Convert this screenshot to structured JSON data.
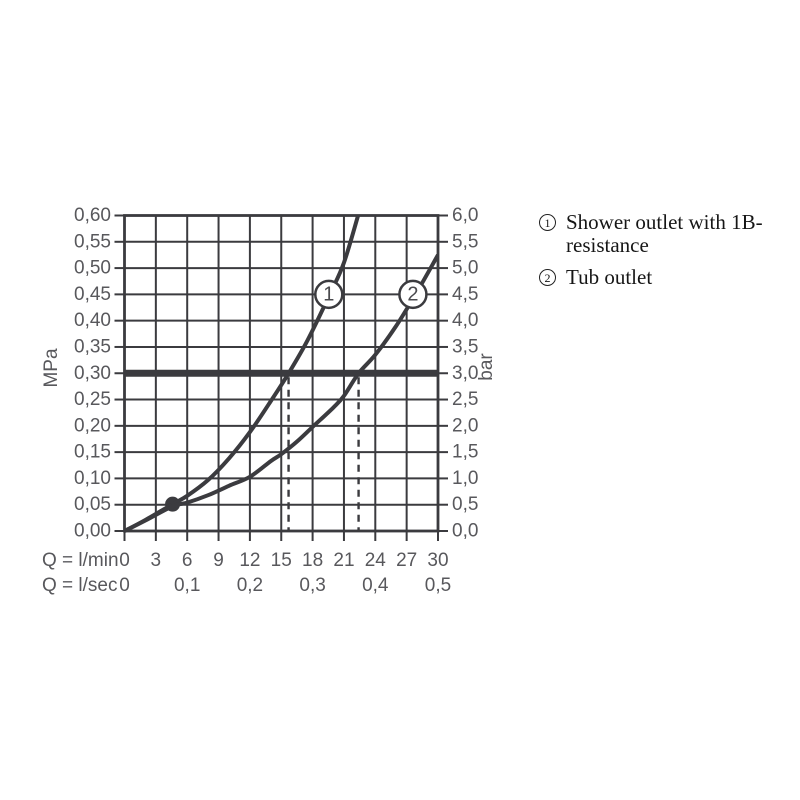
{
  "chart_data": {
    "type": "line",
    "x_axis": {
      "label_lmin": "Q = l/min",
      "label_lsec": "Q = l/sec",
      "range_lmin": [
        0,
        30
      ],
      "tick_values_lmin": [
        0,
        3,
        6,
        9,
        12,
        15,
        18,
        21,
        24,
        27,
        30
      ],
      "tick_labels_lmin": [
        "0",
        "3",
        "6",
        "9",
        "12",
        "15",
        "18",
        "21",
        "24",
        "27",
        "30"
      ],
      "lsec_positions_lmin": [
        0,
        6,
        12,
        18,
        24,
        30
      ],
      "tick_labels_lsec": [
        "0",
        "0,1",
        "0,2",
        "0,3",
        "0,4",
        "0,5"
      ]
    },
    "y_axis_left": {
      "label": "MPa",
      "range": [
        0,
        0.6
      ],
      "tick_labels_top_to_bottom": [
        "0,60",
        "0,55",
        "0,50",
        "0,45",
        "0,40",
        "0,35",
        "0,30",
        "0,25",
        "0,20",
        "0,15",
        "0,10",
        "0,05",
        "0,00"
      ]
    },
    "y_axis_right": {
      "label": "bar",
      "range": [
        0,
        6
      ],
      "tick_labels_top_to_bottom": [
        "6,0",
        "5,5",
        "5,0",
        "4,5",
        "4,0",
        "3,5",
        "3,0",
        "2,5",
        "2,0",
        "1,5",
        "1,0",
        "0,5",
        "0,0"
      ]
    },
    "grid": true,
    "series": [
      {
        "name": "Shower outlet with 1B-resistance",
        "marker": "1",
        "marker_pos_lmin_mpa": [
          19.55,
          0.45
        ],
        "points_lmin_mpa": [
          [
            0,
            0
          ],
          [
            2,
            0.021
          ],
          [
            4.6,
            0.051
          ],
          [
            6,
            0.067
          ],
          [
            8,
            0.097
          ],
          [
            10,
            0.138
          ],
          [
            12,
            0.188
          ],
          [
            14,
            0.247
          ],
          [
            15.7,
            0.3
          ],
          [
            17.5,
            0.362
          ],
          [
            19.65,
            0.45
          ],
          [
            21,
            0.51
          ],
          [
            22.35,
            0.6
          ]
        ]
      },
      {
        "name": "Tub outlet",
        "marker": "2",
        "marker_pos_lmin_mpa": [
          27.6,
          0.45
        ],
        "points_lmin_mpa": [
          [
            0,
            0
          ],
          [
            2,
            0.02
          ],
          [
            4.6,
            0.047
          ],
          [
            6,
            0.054
          ],
          [
            8,
            0.068
          ],
          [
            10,
            0.086
          ],
          [
            12,
            0.103
          ],
          [
            14,
            0.133
          ],
          [
            15,
            0.146
          ],
          [
            16.5,
            0.17
          ],
          [
            18,
            0.198
          ],
          [
            20,
            0.235
          ],
          [
            21,
            0.257
          ],
          [
            22.4,
            0.3
          ],
          [
            24,
            0.335
          ],
          [
            26,
            0.39
          ],
          [
            28,
            0.455
          ],
          [
            30,
            0.525
          ]
        ]
      }
    ],
    "annotations": {
      "pressure_limit_mpa": 0.3,
      "dashed_vertical_lines_lmin": [
        15.7,
        22.4
      ],
      "dot_lmin_mpa": [
        4.6,
        0.051
      ]
    },
    "colors": {
      "line": "#3b3b3f",
      "grid": "#3b3b3f",
      "tick_text": "#58585c",
      "marker_number": "#4a4a4e",
      "legend_text": "#161616",
      "background": "#ffffff"
    }
  },
  "legend": {
    "items": [
      {
        "marker": "1",
        "label": "Shower outlet with 1B-resistance"
      },
      {
        "marker": "2",
        "label": "Tub outlet"
      }
    ]
  }
}
